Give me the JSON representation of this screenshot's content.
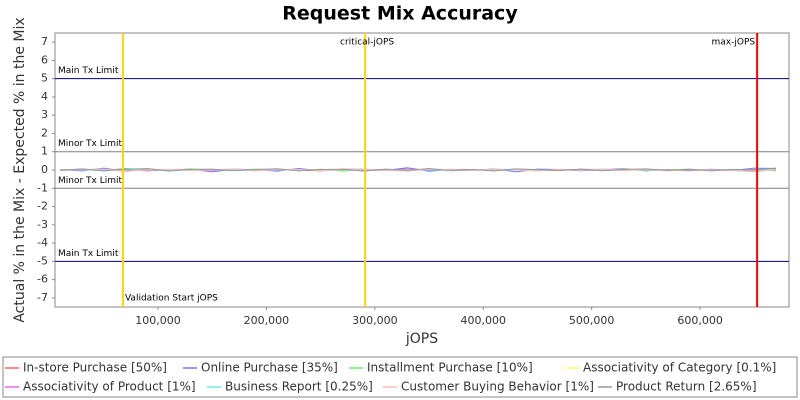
{
  "chart_data": {
    "type": "line",
    "title": "Request Mix Accuracy",
    "x_label": "jOPS",
    "y_label": "Actual % in the Mix - Expected % in the Mix",
    "xlim": [
      5000,
      682000
    ],
    "ylim": [
      -7.5,
      7.5
    ],
    "xticks": [
      {
        "value": 100000,
        "label": "100,000"
      },
      {
        "value": 200000,
        "label": "200,000"
      },
      {
        "value": 300000,
        "label": "300,000"
      },
      {
        "value": 400000,
        "label": "400,000"
      },
      {
        "value": 500000,
        "label": "500,000"
      },
      {
        "value": 600000,
        "label": "600,000"
      }
    ],
    "yticks": [
      -7,
      -6,
      -5,
      -4,
      -3,
      -2,
      -1,
      0,
      1,
      2,
      3,
      4,
      5,
      6,
      7
    ],
    "grid": false,
    "x": [
      10000,
      30000,
      50000,
      70000,
      90000,
      110000,
      130000,
      150000,
      170000,
      190000,
      210000,
      230000,
      250000,
      270000,
      290000,
      310000,
      330000,
      350000,
      370000,
      390000,
      410000,
      430000,
      450000,
      470000,
      490000,
      510000,
      530000,
      550000,
      570000,
      590000,
      610000,
      630000,
      650000,
      670000
    ],
    "horizontal_lines": [
      {
        "label": "Main Tx Limit",
        "value": 5,
        "color": "#000080"
      },
      {
        "label": "Minor Tx Limit",
        "value": 1,
        "color": "#808080"
      },
      {
        "label": "Minor Tx Limit",
        "value": -1,
        "color": "#808080"
      },
      {
        "label": "Main Tx Limit",
        "value": -5,
        "color": "#000080"
      }
    ],
    "vertical_lines": [
      {
        "label": "Validation Start jOPS",
        "value": 67700,
        "color": "#ffd700"
      },
      {
        "label": "critical-jOPS",
        "value": 291000,
        "color": "#ffd700"
      },
      {
        "label": "max-jOPS",
        "value": 652600,
        "color": "#ff0000"
      }
    ],
    "series": [
      {
        "name": "In-store Purchase [50%]",
        "color": "#ff6666",
        "values": [
          0,
          0.05,
          -0.03,
          0.08,
          -0.05,
          0.02,
          0.04,
          -0.02,
          0.06,
          -0.04,
          0.03,
          0,
          -0.05,
          0.05,
          0.02,
          -0.03,
          0.1,
          -0.05,
          0.03,
          0.02,
          -0.04,
          0.05,
          0,
          -0.03,
          0.04,
          0.02,
          -0.02,
          0.03,
          0,
          -0.04,
          0.02,
          0,
          -0.05,
          0.03
        ]
      },
      {
        "name": "Online Purchase [35%]",
        "color": "#7777ff",
        "values": [
          0.02,
          -0.05,
          0.1,
          -0.08,
          0.06,
          -0.03,
          0.05,
          -0.1,
          0.04,
          0.02,
          -0.06,
          0.08,
          -0.04,
          0.03,
          0.05,
          -0.02,
          0.12,
          -0.07,
          0.04,
          -0.03,
          0.06,
          -0.1,
          0.05,
          0.03,
          -0.04,
          0.02,
          0.07,
          -0.05,
          0.03,
          -0.02,
          0.04,
          -0.03,
          0.1,
          0.08
        ]
      },
      {
        "name": "Installment Purchase [10%]",
        "color": "#66ee66",
        "values": [
          0.01,
          0.03,
          -0.05,
          0.08,
          0.02,
          -0.04,
          0.06,
          0.01,
          -0.03,
          0.05,
          0.02,
          -0.02,
          0.04,
          -0.06,
          0.03,
          0.01,
          -0.04,
          0.05,
          0.02,
          -0.03,
          0.04,
          0.01,
          -0.05,
          0.03,
          0.02,
          -0.02,
          0.04,
          -0.03,
          0.01,
          0.05,
          -0.02,
          0.03,
          0.01,
          -0.04
        ]
      },
      {
        "name": "Associativity of Category [0.1%]",
        "color": "#ffff66",
        "values": [
          0,
          0.01,
          0,
          -0.01,
          0,
          0.01,
          0,
          0,
          -0.01,
          0,
          0,
          0.01,
          0,
          0,
          -0.01,
          0,
          0.01,
          0,
          0,
          0,
          -0.01,
          0,
          0.01,
          0,
          0,
          0,
          -0.01,
          0,
          0.01,
          0,
          0,
          0,
          -0.01,
          0
        ]
      },
      {
        "name": "Associativity of Product [1%]",
        "color": "#ee66ee",
        "values": [
          0.02,
          -0.01,
          0.03,
          0,
          -0.02,
          0.01,
          0.02,
          -0.03,
          0.01,
          0,
          0.02,
          -0.01,
          0.01,
          0.03,
          -0.02,
          0,
          0.02,
          -0.01,
          0.01,
          -0.02,
          0.03,
          0,
          -0.01,
          0.02,
          0,
          -0.02,
          0.01,
          0.02,
          -0.01,
          0,
          0.01,
          -0.02,
          0.02,
          0
        ]
      },
      {
        "name": "Business Report [0.25%]",
        "color": "#66eeee",
        "values": [
          0,
          0.01,
          -0.01,
          0.02,
          0,
          -0.01,
          0.01,
          0,
          0.01,
          -0.02,
          0,
          0.01,
          -0.01,
          0,
          0.02,
          -0.01,
          0,
          0.01,
          -0.01,
          0,
          0.02,
          -0.01,
          0,
          0.01,
          0,
          -0.01,
          0.01,
          0,
          -0.02,
          0.01,
          0,
          0.01,
          -0.01,
          0.02
        ]
      },
      {
        "name": "Customer Buying Behavior [1%]",
        "color": "#ffbbbb",
        "values": [
          -0.02,
          0.03,
          0.05,
          -0.08,
          0.02,
          0.04,
          -0.03,
          0.01,
          0.06,
          -0.05,
          0.02,
          0.03,
          -0.04,
          0.01,
          0.05,
          -0.02,
          -0.06,
          0.04,
          0.02,
          -0.03,
          0.05,
          0.01,
          -0.04,
          0.03,
          -0.02,
          0.06,
          -0.01,
          0.02,
          -0.05,
          0.03,
          0.01,
          -0.03,
          -0.1,
          0.02
        ]
      },
      {
        "name": "Product Return [2.65%]",
        "color": "#999999",
        "values": [
          -0.03,
          0.06,
          -0.05,
          0.04,
          0.08,
          -0.06,
          0.03,
          0.05,
          -0.04,
          0.02,
          0.07,
          -0.05,
          0.03,
          0.04,
          -0.06,
          0.05,
          -0.02,
          0.08,
          -0.04,
          0.03,
          -0.05,
          0.06,
          0.02,
          -0.03,
          0.05,
          -0.04,
          0.03,
          0.06,
          -0.02,
          0.04,
          -0.05,
          0.03,
          0.02,
          0.1
        ]
      }
    ]
  }
}
